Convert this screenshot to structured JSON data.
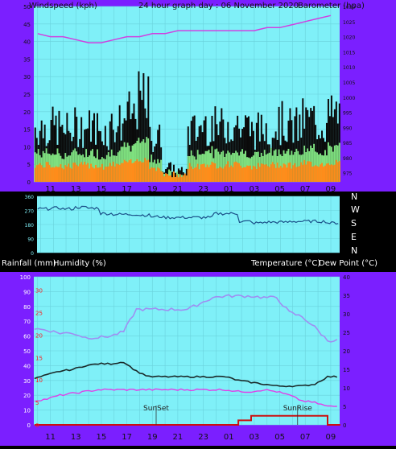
{
  "header": {
    "left": "Windspeed (kph)",
    "center": "24 hour graph day : 06 November 2020",
    "right": "Barometer (hpa)"
  },
  "section2": {
    "compass": [
      "N",
      "W",
      "S",
      "E",
      "N"
    ]
  },
  "section3_header": {
    "rain_label": "Rainfall (mm)",
    "hum_label": "Humidity (%)",
    "temp_label": "Temperature (°C)",
    "dew_label": "Dew Point (°C)"
  },
  "x_ticks": [
    "11",
    "13",
    "15",
    "17",
    "19",
    "21",
    "23",
    "01",
    "03",
    "05",
    "07",
    "09"
  ],
  "colors": {
    "frame": "#7b1fff",
    "plot_bg": "#7ff0f8",
    "wind_gust": "#0a0a0a",
    "wind_avg": "#7fe07f",
    "wind_low": "#ff8c1a",
    "barometer": "#d040e0",
    "direction": "#1a4f88",
    "humidity": "#9f8ff2",
    "temperature": "#1a2a2a",
    "dewpoint": "#e040e8",
    "rainfall": "#cc1010",
    "rain_axis": "#ff1a1a"
  },
  "chart_data": [
    {
      "type": "line",
      "title": "24 hour graph day : 06 November 2020",
      "ylabel": "Windspeed (kph)",
      "y2label": "Barometer (hpa)",
      "ylim": [
        0,
        50
      ],
      "y_ticks": [
        0,
        5,
        10,
        15,
        20,
        25,
        30,
        35,
        40,
        45,
        50
      ],
      "y2lim": [
        972,
        1030
      ],
      "y2_ticks": [
        975,
        980,
        985,
        990,
        995,
        1000,
        1005,
        1010,
        1015,
        1020,
        1025,
        1030
      ],
      "x": [
        "10",
        "11",
        "12",
        "13",
        "14",
        "15",
        "16",
        "17",
        "18",
        "19",
        "20",
        "21",
        "22",
        "23",
        "00",
        "01",
        "02",
        "03",
        "04",
        "05",
        "06",
        "07",
        "08",
        "09"
      ],
      "series": [
        {
          "name": "Windspeed (kph)",
          "values": [
            15,
            15,
            14,
            15,
            15,
            14,
            16,
            18,
            22,
            12,
            4,
            3,
            14,
            16,
            15,
            16,
            15,
            14,
            15,
            16,
            15,
            17,
            16,
            18
          ]
        },
        {
          "name": "Barometer (hpa)",
          "values": [
            1021,
            1020,
            1020,
            1019,
            1018,
            1018,
            1019,
            1020,
            1020,
            1021,
            1021,
            1022,
            1022,
            1022,
            1022,
            1022,
            1022,
            1022,
            1023,
            1023,
            1024,
            1025,
            1026,
            1027
          ]
        }
      ]
    },
    {
      "type": "line",
      "ylim": [
        0,
        360
      ],
      "y_ticks": [
        0,
        90,
        180,
        270,
        360
      ],
      "x": [
        "10",
        "11",
        "12",
        "13",
        "14",
        "15",
        "16",
        "17",
        "18",
        "19",
        "20",
        "21",
        "22",
        "23",
        "00",
        "01",
        "02",
        "03",
        "04",
        "05",
        "06",
        "07",
        "08",
        "09"
      ],
      "series": [
        {
          "name": "Wind direction",
          "values": [
            280,
            285,
            280,
            290,
            285,
            250,
            245,
            245,
            240,
            230,
            225,
            225,
            225,
            225,
            250,
            250,
            200,
            190,
            195,
            195,
            200,
            200,
            200,
            190
          ]
        }
      ]
    },
    {
      "type": "line",
      "ylim": [
        0,
        100
      ],
      "y_ticks": [
        0,
        10,
        20,
        30,
        40,
        50,
        60,
        70,
        80,
        90,
        100
      ],
      "y2lim": [
        0,
        40
      ],
      "y2_ticks": [
        0,
        5,
        10,
        15,
        20,
        25,
        30,
        35,
        40
      ],
      "rain_ticks": [
        0,
        5,
        10,
        15,
        20,
        25,
        30
      ],
      "x": [
        "10",
        "11",
        "12",
        "13",
        "14",
        "15",
        "16",
        "17",
        "18",
        "19",
        "20",
        "21",
        "22",
        "23",
        "00",
        "01",
        "02",
        "03",
        "04",
        "05",
        "06",
        "07",
        "08",
        "09"
      ],
      "annotations": [
        "SunSet",
        "SunRise"
      ],
      "series": [
        {
          "name": "Humidity (%)",
          "values": [
            65,
            64,
            62,
            62,
            59,
            59,
            60,
            63,
            78,
            78,
            78,
            78,
            78,
            82,
            86,
            87,
            87,
            87,
            86,
            86,
            76,
            73,
            66,
            57
          ]
        },
        {
          "name": "Temperature (°C)",
          "values": [
            12.5,
            13.5,
            14.5,
            15,
            16,
            16.5,
            16.5,
            17,
            14.5,
            13,
            13,
            13,
            13,
            13,
            13,
            13,
            12,
            11.5,
            11,
            10.5,
            10.5,
            10.5,
            11,
            13
          ]
        },
        {
          "name": "Dew Point (°C)",
          "values": [
            6.5,
            7,
            8,
            8.5,
            9,
            9.5,
            9.5,
            9.5,
            9.5,
            9.5,
            9.5,
            9.5,
            9.5,
            9.5,
            9.5,
            9.5,
            9,
            9,
            9.5,
            9,
            8,
            6.5,
            6,
            5
          ]
        },
        {
          "name": "Rainfall (mm)",
          "values": [
            0,
            0,
            0,
            0,
            0,
            0,
            0,
            0,
            0,
            0,
            0,
            0,
            0,
            0,
            0,
            0,
            1,
            2,
            2,
            2,
            2,
            2,
            2,
            0
          ]
        }
      ]
    }
  ]
}
